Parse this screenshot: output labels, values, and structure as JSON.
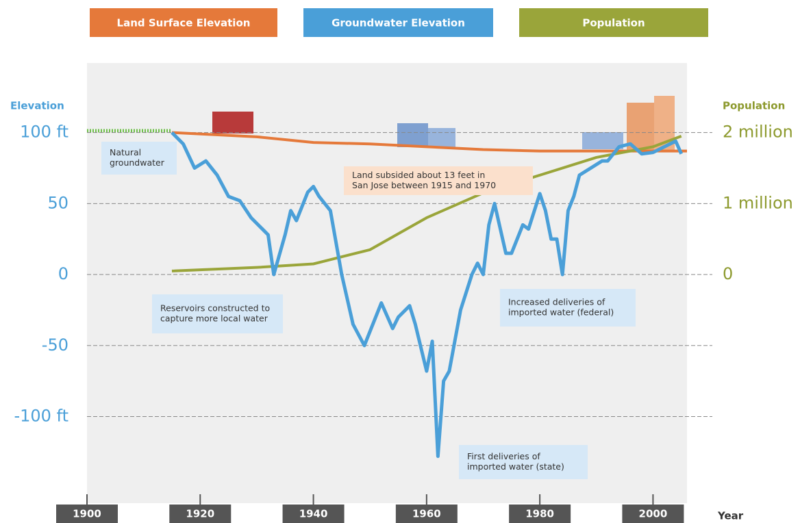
{
  "chart_data": {
    "type": "line",
    "y_label": "Elevation",
    "y2_label": "Population",
    "x_label": "Year",
    "xlim": [
      1900,
      2006
    ],
    "xticks": [
      1900,
      1920,
      1940,
      1960,
      1980,
      2000
    ],
    "ylim": [
      -161,
      149
    ],
    "yticks": [
      {
        "value": 100,
        "label": "100 ft"
      },
      50,
      0,
      -50,
      {
        "value": -100,
        "label": "-100 ft"
      }
    ],
    "y2lim": [
      -3.22,
      2.98
    ],
    "y2ticks": [
      {
        "value": 2,
        "label": "2 million"
      },
      {
        "value": 1,
        "label": "1 million"
      },
      0
    ],
    "grid": true,
    "series": [
      {
        "name": "Land Surface Elevation",
        "color": "#e5793a",
        "x": [
          1915,
          1930,
          1940,
          1950,
          1960,
          1970,
          1980,
          2006
        ],
        "values": [
          100,
          97,
          93,
          92,
          90,
          88,
          87,
          87
        ]
      },
      {
        "name": "Groundwater Elevation",
        "color": "#4a9fd8",
        "x": [
          1915,
          1917,
          1919,
          1921,
          1923,
          1925,
          1927,
          1929,
          1931,
          1932,
          1933,
          1935,
          1936,
          1937,
          1939,
          1940,
          1941,
          1943,
          1945,
          1947,
          1949,
          1951,
          1952,
          1954,
          1955,
          1957,
          1958,
          1960,
          1961,
          1962,
          1963,
          1964,
          1966,
          1968,
          1969,
          1970,
          1971,
          1972,
          1974,
          1975,
          1977,
          1978,
          1980,
          1981,
          1982,
          1983,
          1984,
          1985,
          1986,
          1987,
          1989,
          1991,
          1992,
          1994,
          1996,
          1998,
          2000,
          2002,
          2004,
          2005
        ],
        "values": [
          100,
          92,
          75,
          80,
          70,
          55,
          52,
          40,
          32,
          28,
          0,
          28,
          45,
          38,
          58,
          62,
          55,
          45,
          0,
          -35,
          -50,
          -30,
          -20,
          -38,
          -30,
          -22,
          -35,
          -68,
          -47,
          -128,
          -75,
          -68,
          -25,
          0,
          8,
          0,
          35,
          50,
          15,
          15,
          35,
          32,
          57,
          45,
          25,
          25,
          0,
          45,
          55,
          70,
          75,
          80,
          80,
          90,
          92,
          85,
          86,
          90,
          94,
          85
        ]
      },
      {
        "name": "Population",
        "color": "#9aa53a",
        "axis": "y2",
        "x": [
          1915,
          1930,
          1940,
          1950,
          1960,
          1970,
          1980,
          1990,
          2000,
          2005
        ],
        "values": [
          0.05,
          0.1,
          0.15,
          0.35,
          0.8,
          1.15,
          1.4,
          1.65,
          1.8,
          1.95
        ]
      }
    ],
    "annotations": [
      {
        "lines": [
          "Natural",
          "groundwater"
        ]
      },
      {
        "lines": [
          "Reservoirs constructed to",
          "capture more local water"
        ]
      },
      {
        "lines": [
          "Land subsided about 13 feet in",
          "San Jose between 1915 and 1970"
        ]
      },
      {
        "lines": [
          "Increased deliveries of",
          "imported water (federal)"
        ]
      },
      {
        "lines": [
          "First deliveries of",
          "imported water (state)"
        ]
      }
    ]
  }
}
